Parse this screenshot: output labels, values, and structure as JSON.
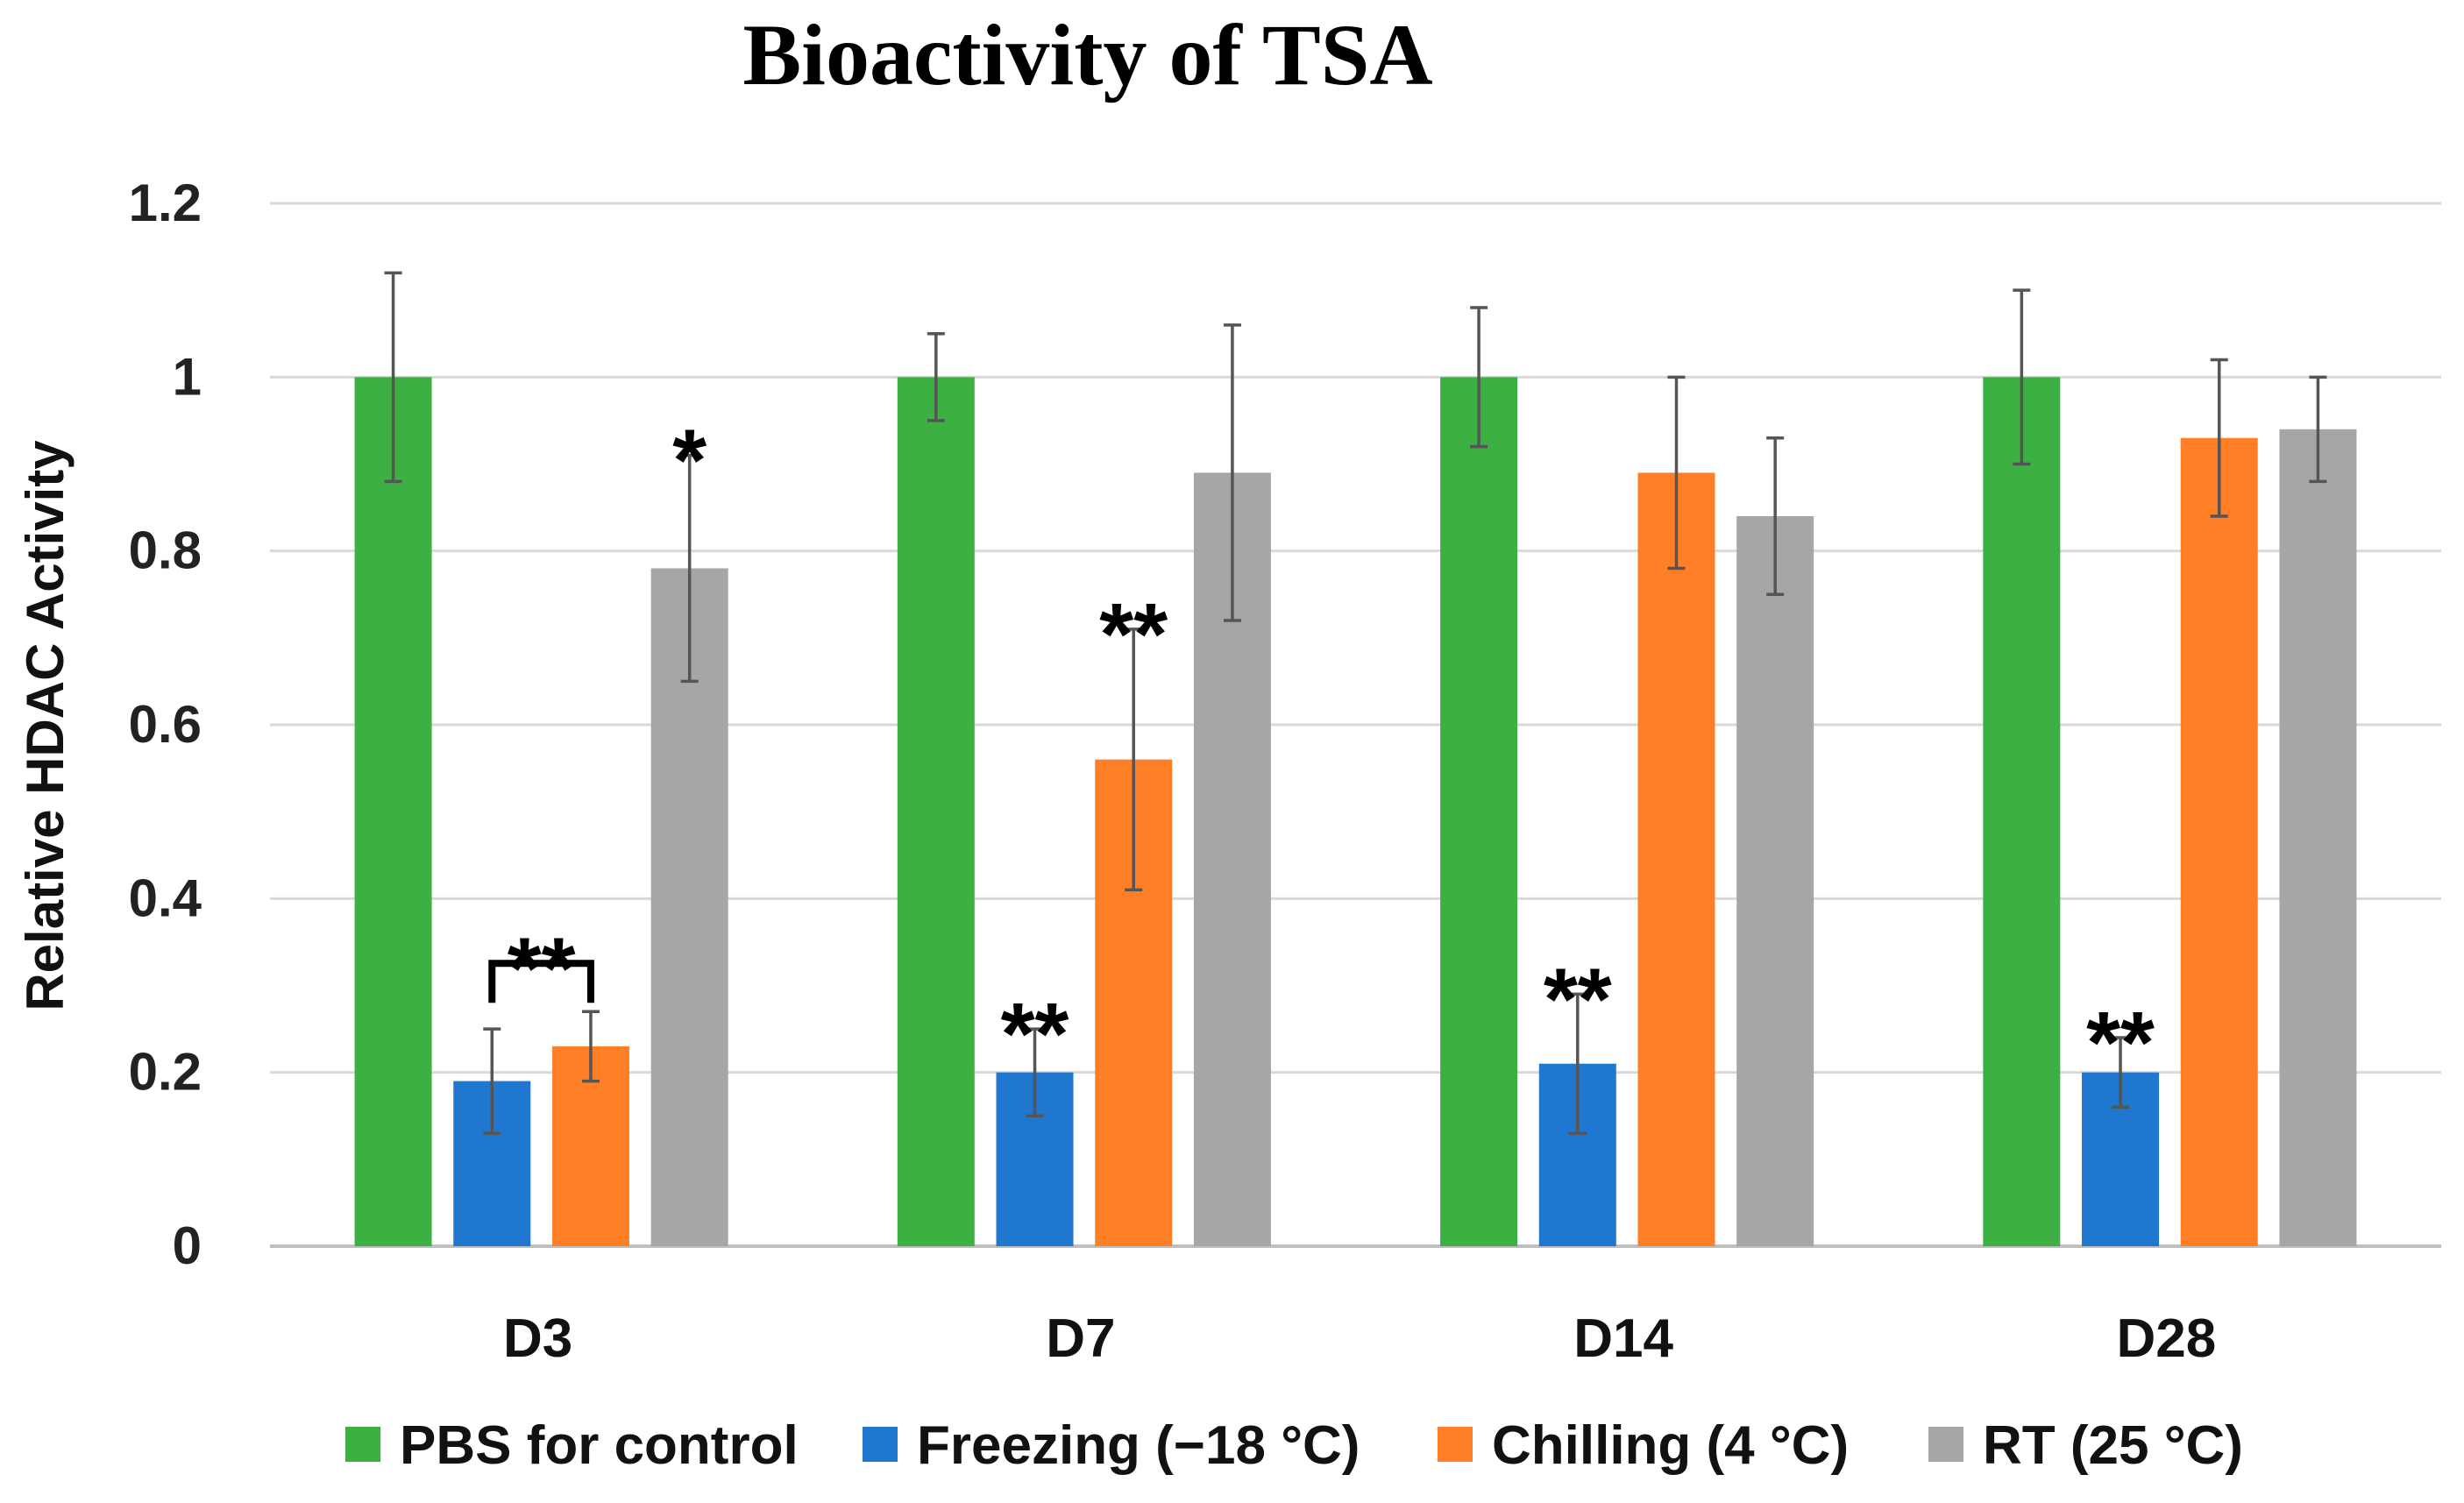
{
  "chart_data": {
    "type": "bar",
    "title": "Bioactivity of TSA",
    "xlabel": "",
    "ylabel": "Relative HDAC  Activity",
    "ylim": [
      0,
      1.2
    ],
    "yticks": [
      "0",
      "0.2",
      "0.4",
      "0.6",
      "0.8",
      "1",
      "1.2"
    ],
    "ytick_values": [
      0,
      0.2,
      0.4,
      0.6,
      0.8,
      1.0,
      1.2
    ],
    "grid": true,
    "legend_position": "bottom",
    "categories": [
      "D3",
      "D7",
      "D14",
      "D28"
    ],
    "series": [
      {
        "name": "PBS for control",
        "color": "#3cb043",
        "values": [
          1.0,
          1.0,
          1.0,
          1.0
        ],
        "errors": [
          0.12,
          0.05,
          0.08,
          0.1
        ]
      },
      {
        "name": "Freezing (−18 °C)",
        "color": "#1f77d0",
        "values": [
          0.19,
          0.2,
          0.21,
          0.2
        ],
        "errors": [
          0.06,
          0.05,
          0.08,
          0.04
        ]
      },
      {
        "name": "Chilling (4 °C)",
        "color": "#ff7f27",
        "values": [
          0.23,
          0.56,
          0.89,
          0.93
        ],
        "errors": [
          0.04,
          0.15,
          0.11,
          0.09
        ]
      },
      {
        "name": "RT (25 °C)",
        "color": "#a6a6a6",
        "values": [
          0.78,
          0.89,
          0.84,
          0.94
        ],
        "errors": [
          0.13,
          0.17,
          0.09,
          0.06
        ]
      }
    ],
    "annotations": [
      {
        "category": 0,
        "series_from": 1,
        "series_to": 2,
        "bracket": true,
        "text": "**"
      },
      {
        "category": 0,
        "series": 3,
        "text": "*"
      },
      {
        "category": 1,
        "series": 1,
        "text": "**"
      },
      {
        "category": 1,
        "series": 2,
        "text": "**"
      },
      {
        "category": 2,
        "series": 1,
        "text": "**"
      },
      {
        "category": 3,
        "series": 1,
        "text": "**"
      }
    ]
  }
}
